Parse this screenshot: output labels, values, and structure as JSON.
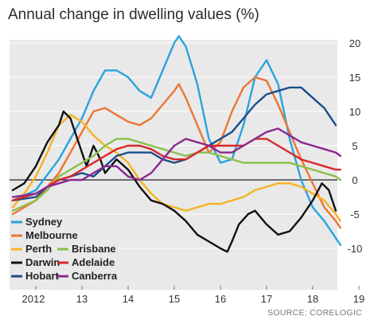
{
  "chart_data": {
    "type": "line",
    "title": "Annual change in dwelling values (%)",
    "source": "SOURCE: CORELOGIC",
    "xlabel": "",
    "ylabel": "",
    "x_ticks": [
      "2012",
      "13",
      "14",
      "15",
      "16",
      "17",
      "18",
      "19"
    ],
    "y_ticks": [
      20,
      15,
      10,
      5,
      0,
      -5,
      -10
    ],
    "xlim": [
      2011.5,
      2019.0
    ],
    "ylim": [
      -12,
      21
    ],
    "grid": true,
    "legend_position": "bottom-left",
    "series": [
      {
        "name": "Sydney",
        "color": "#29a3dd",
        "points": [
          [
            2011.5,
            -3
          ],
          [
            2012.0,
            -1.5
          ],
          [
            2012.5,
            3
          ],
          [
            2012.75,
            6
          ],
          [
            2013.0,
            9
          ],
          [
            2013.25,
            13
          ],
          [
            2013.5,
            16
          ],
          [
            2013.75,
            16
          ],
          [
            2014.0,
            15
          ],
          [
            2014.25,
            13
          ],
          [
            2014.5,
            12
          ],
          [
            2014.75,
            16
          ],
          [
            2015.0,
            20
          ],
          [
            2015.1,
            21
          ],
          [
            2015.25,
            19.5
          ],
          [
            2015.5,
            14
          ],
          [
            2015.75,
            6
          ],
          [
            2016.0,
            2.5
          ],
          [
            2016.25,
            3
          ],
          [
            2016.5,
            8
          ],
          [
            2016.75,
            15
          ],
          [
            2017.0,
            17.5
          ],
          [
            2017.25,
            14
          ],
          [
            2017.5,
            6
          ],
          [
            2017.75,
            0
          ],
          [
            2018.0,
            -4
          ],
          [
            2018.25,
            -6
          ],
          [
            2018.5,
            -8.5
          ],
          [
            2018.6,
            -9.5
          ]
        ]
      },
      {
        "name": "Melbourne",
        "color": "#ec7633",
        "points": [
          [
            2011.5,
            -5
          ],
          [
            2012.0,
            -3
          ],
          [
            2012.5,
            1
          ],
          [
            2012.75,
            4
          ],
          [
            2013.0,
            7
          ],
          [
            2013.25,
            10
          ],
          [
            2013.5,
            10.5
          ],
          [
            2013.75,
            9.5
          ],
          [
            2014.0,
            8.5
          ],
          [
            2014.25,
            8
          ],
          [
            2014.5,
            9
          ],
          [
            2014.75,
            11
          ],
          [
            2015.0,
            13
          ],
          [
            2015.1,
            14
          ],
          [
            2015.25,
            12
          ],
          [
            2015.5,
            8
          ],
          [
            2015.75,
            4
          ],
          [
            2016.0,
            5.5
          ],
          [
            2016.25,
            10
          ],
          [
            2016.5,
            13.5
          ],
          [
            2016.75,
            15
          ],
          [
            2017.0,
            14.5
          ],
          [
            2017.25,
            11
          ],
          [
            2017.5,
            7
          ],
          [
            2017.75,
            3
          ],
          [
            2018.0,
            -0.5
          ],
          [
            2018.25,
            -4
          ],
          [
            2018.5,
            -6
          ],
          [
            2018.6,
            -7
          ]
        ]
      },
      {
        "name": "Perth",
        "color": "#f5b324",
        "points": [
          [
            2011.5,
            -4
          ],
          [
            2011.75,
            -2
          ],
          [
            2012.0,
            0.5
          ],
          [
            2012.25,
            4
          ],
          [
            2012.5,
            8
          ],
          [
            2012.75,
            9.5
          ],
          [
            2013.0,
            8.5
          ],
          [
            2013.25,
            6.5
          ],
          [
            2013.5,
            5
          ],
          [
            2013.75,
            4
          ],
          [
            2014.0,
            2.5
          ],
          [
            2014.25,
            0
          ],
          [
            2014.5,
            -2
          ],
          [
            2014.75,
            -3.5
          ],
          [
            2015.0,
            -4
          ],
          [
            2015.25,
            -4.5
          ],
          [
            2015.5,
            -4
          ],
          [
            2015.75,
            -3.5
          ],
          [
            2016.0,
            -3.5
          ],
          [
            2016.25,
            -3
          ],
          [
            2016.5,
            -2.5
          ],
          [
            2016.75,
            -1.5
          ],
          [
            2017.0,
            -1
          ],
          [
            2017.25,
            -0.5
          ],
          [
            2017.5,
            -0.5
          ],
          [
            2017.75,
            -1
          ],
          [
            2018.0,
            -2
          ],
          [
            2018.25,
            -3
          ],
          [
            2018.5,
            -5
          ],
          [
            2018.6,
            -6
          ]
        ]
      },
      {
        "name": "Darwin",
        "color": "#111111",
        "points": [
          [
            2011.5,
            -1.5
          ],
          [
            2011.75,
            -0.5
          ],
          [
            2012.0,
            2
          ],
          [
            2012.25,
            5.5
          ],
          [
            2012.5,
            8
          ],
          [
            2012.6,
            10
          ],
          [
            2012.75,
            9
          ],
          [
            2013.0,
            4
          ],
          [
            2013.1,
            2
          ],
          [
            2013.25,
            5
          ],
          [
            2013.4,
            3
          ],
          [
            2013.5,
            1
          ],
          [
            2013.75,
            3
          ],
          [
            2014.0,
            1.5
          ],
          [
            2014.25,
            -1
          ],
          [
            2014.5,
            -3
          ],
          [
            2014.75,
            -3.5
          ],
          [
            2015.0,
            -4.5
          ],
          [
            2015.25,
            -6
          ],
          [
            2015.5,
            -8
          ],
          [
            2015.75,
            -9
          ],
          [
            2016.0,
            -10
          ],
          [
            2016.15,
            -10.5
          ],
          [
            2016.25,
            -9
          ],
          [
            2016.4,
            -6.5
          ],
          [
            2016.6,
            -5
          ],
          [
            2016.75,
            -4.5
          ],
          [
            2017.0,
            -6.5
          ],
          [
            2017.25,
            -8
          ],
          [
            2017.5,
            -7.5
          ],
          [
            2017.75,
            -5.5
          ],
          [
            2018.0,
            -3
          ],
          [
            2018.2,
            -0.5
          ],
          [
            2018.35,
            -1.5
          ],
          [
            2018.5,
            -4.5
          ]
        ]
      },
      {
        "name": "Hobart",
        "color": "#1b4d8b",
        "points": [
          [
            2011.5,
            -3
          ],
          [
            2012.0,
            -2.5
          ],
          [
            2012.25,
            -1
          ],
          [
            2012.5,
            0
          ],
          [
            2012.75,
            0.5
          ],
          [
            2013.0,
            1
          ],
          [
            2013.25,
            0.5
          ],
          [
            2013.5,
            2
          ],
          [
            2013.75,
            3.5
          ],
          [
            2014.0,
            4
          ],
          [
            2014.25,
            4
          ],
          [
            2014.5,
            4
          ],
          [
            2014.75,
            3
          ],
          [
            2015.0,
            2.5
          ],
          [
            2015.25,
            3
          ],
          [
            2015.5,
            4
          ],
          [
            2015.75,
            5
          ],
          [
            2016.0,
            6
          ],
          [
            2016.25,
            7
          ],
          [
            2016.5,
            9
          ],
          [
            2016.75,
            11
          ],
          [
            2017.0,
            12.5
          ],
          [
            2017.25,
            13
          ],
          [
            2017.5,
            13.5
          ],
          [
            2017.75,
            13.5
          ],
          [
            2018.0,
            12
          ],
          [
            2018.25,
            10.5
          ],
          [
            2018.4,
            9
          ],
          [
            2018.5,
            8
          ]
        ]
      },
      {
        "name": "Brisbane",
        "color": "#8cbf4a",
        "points": [
          [
            2011.5,
            -4.5
          ],
          [
            2012.0,
            -3
          ],
          [
            2012.25,
            -1.5
          ],
          [
            2012.5,
            0.5
          ],
          [
            2012.75,
            1.5
          ],
          [
            2013.0,
            2.5
          ],
          [
            2013.25,
            3.5
          ],
          [
            2013.5,
            5
          ],
          [
            2013.75,
            6
          ],
          [
            2014.0,
            6
          ],
          [
            2014.25,
            5.5
          ],
          [
            2014.5,
            5
          ],
          [
            2014.75,
            4.5
          ],
          [
            2015.0,
            4
          ],
          [
            2015.25,
            3.5
          ],
          [
            2015.5,
            4
          ],
          [
            2015.75,
            4
          ],
          [
            2016.0,
            3.5
          ],
          [
            2016.25,
            3
          ],
          [
            2016.5,
            2.5
          ],
          [
            2016.75,
            2.5
          ],
          [
            2017.0,
            2.5
          ],
          [
            2017.25,
            2.5
          ],
          [
            2017.5,
            2.5
          ],
          [
            2017.75,
            2
          ],
          [
            2018.0,
            1.5
          ],
          [
            2018.25,
            1
          ],
          [
            2018.5,
            0.5
          ],
          [
            2018.6,
            0
          ]
        ]
      },
      {
        "name": "Adelaide",
        "color": "#d8272b",
        "points": [
          [
            2011.5,
            -3
          ],
          [
            2012.0,
            -2
          ],
          [
            2012.25,
            -1
          ],
          [
            2012.5,
            0
          ],
          [
            2012.75,
            0.5
          ],
          [
            2013.0,
            1.5
          ],
          [
            2013.25,
            2.5
          ],
          [
            2013.5,
            3.5
          ],
          [
            2013.75,
            4.5
          ],
          [
            2014.0,
            5
          ],
          [
            2014.25,
            5
          ],
          [
            2014.5,
            4.5
          ],
          [
            2014.75,
            3.5
          ],
          [
            2015.0,
            3
          ],
          [
            2015.25,
            3
          ],
          [
            2015.5,
            4
          ],
          [
            2015.75,
            5
          ],
          [
            2016.0,
            5
          ],
          [
            2016.25,
            5
          ],
          [
            2016.5,
            5
          ],
          [
            2016.75,
            6
          ],
          [
            2017.0,
            6
          ],
          [
            2017.25,
            5
          ],
          [
            2017.5,
            4
          ],
          [
            2017.75,
            3
          ],
          [
            2018.0,
            2.5
          ],
          [
            2018.25,
            2
          ],
          [
            2018.5,
            1.5
          ],
          [
            2018.6,
            1.5
          ]
        ]
      },
      {
        "name": "Canberra",
        "color": "#8b2890",
        "points": [
          [
            2011.5,
            -2.5
          ],
          [
            2012.0,
            -2
          ],
          [
            2012.25,
            -1
          ],
          [
            2012.5,
            -0.5
          ],
          [
            2012.75,
            0
          ],
          [
            2013.0,
            0
          ],
          [
            2013.25,
            1
          ],
          [
            2013.5,
            2
          ],
          [
            2013.75,
            2
          ],
          [
            2014.0,
            0.5
          ],
          [
            2014.25,
            0
          ],
          [
            2014.5,
            1
          ],
          [
            2014.75,
            3
          ],
          [
            2015.0,
            5
          ],
          [
            2015.25,
            6
          ],
          [
            2015.5,
            5.5
          ],
          [
            2015.75,
            5
          ],
          [
            2016.0,
            4
          ],
          [
            2016.25,
            4
          ],
          [
            2016.5,
            5
          ],
          [
            2016.75,
            6
          ],
          [
            2017.0,
            7
          ],
          [
            2017.25,
            7.5
          ],
          [
            2017.5,
            6.5
          ],
          [
            2017.75,
            5.5
          ],
          [
            2018.0,
            5
          ],
          [
            2018.25,
            4.5
          ],
          [
            2018.5,
            4
          ],
          [
            2018.6,
            3.5
          ]
        ]
      }
    ]
  }
}
